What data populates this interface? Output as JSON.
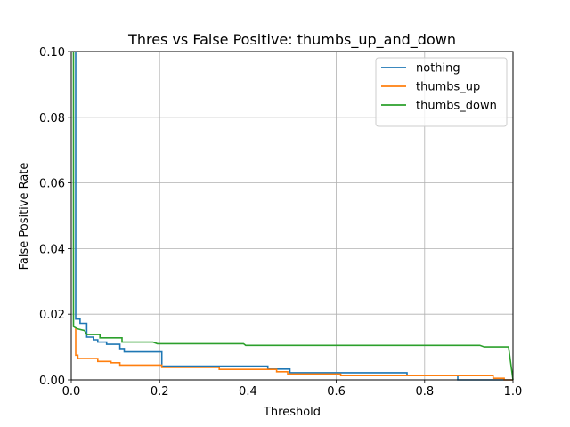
{
  "chart_data": {
    "type": "line",
    "title": "Thres vs False Positive: thumbs_up_and_down",
    "xlabel": "Threshold",
    "ylabel": "False Positive Rate",
    "xlim": [
      0.0,
      1.0
    ],
    "ylim": [
      0.0,
      0.1
    ],
    "xticks": [
      "0.0",
      "0.2",
      "0.4",
      "0.6",
      "0.8",
      "1.0"
    ],
    "yticks": [
      "0.00",
      "0.02",
      "0.04",
      "0.06",
      "0.08",
      "0.10"
    ],
    "grid": true,
    "legend_position": "top-right",
    "series": [
      {
        "name": "nothing",
        "color": "#1f77b4",
        "points": [
          [
            0.01,
            0.1
          ],
          [
            0.01,
            0.0185
          ],
          [
            0.02,
            0.0185
          ],
          [
            0.02,
            0.0172
          ],
          [
            0.035,
            0.0172
          ],
          [
            0.035,
            0.013
          ],
          [
            0.05,
            0.013
          ],
          [
            0.05,
            0.0122
          ],
          [
            0.06,
            0.0122
          ],
          [
            0.06,
            0.0115
          ],
          [
            0.08,
            0.0115
          ],
          [
            0.08,
            0.0108
          ],
          [
            0.11,
            0.0108
          ],
          [
            0.11,
            0.0095
          ],
          [
            0.12,
            0.0095
          ],
          [
            0.12,
            0.0085
          ],
          [
            0.205,
            0.0085
          ],
          [
            0.205,
            0.0042
          ],
          [
            0.445,
            0.0042
          ],
          [
            0.445,
            0.0033
          ],
          [
            0.495,
            0.0033
          ],
          [
            0.495,
            0.0022
          ],
          [
            0.76,
            0.0022
          ],
          [
            0.76,
            0.0013
          ],
          [
            0.875,
            0.0013
          ],
          [
            0.875,
            0.0
          ],
          [
            1.0,
            0.0
          ]
        ]
      },
      {
        "name": "thumbs_up",
        "color": "#ff7f0e",
        "points": [
          [
            0.01,
            0.016
          ],
          [
            0.01,
            0.0075
          ],
          [
            0.015,
            0.0075
          ],
          [
            0.015,
            0.0065
          ],
          [
            0.06,
            0.0065
          ],
          [
            0.06,
            0.0056
          ],
          [
            0.09,
            0.0056
          ],
          [
            0.09,
            0.0052
          ],
          [
            0.11,
            0.0052
          ],
          [
            0.11,
            0.0045
          ],
          [
            0.205,
            0.0045
          ],
          [
            0.205,
            0.0038
          ],
          [
            0.335,
            0.0038
          ],
          [
            0.335,
            0.0032
          ],
          [
            0.465,
            0.0032
          ],
          [
            0.465,
            0.0025
          ],
          [
            0.49,
            0.0025
          ],
          [
            0.49,
            0.0018
          ],
          [
            0.61,
            0.0018
          ],
          [
            0.61,
            0.0013
          ],
          [
            0.955,
            0.0013
          ],
          [
            0.955,
            0.0005
          ],
          [
            0.98,
            0.0005
          ],
          [
            0.98,
            0.0
          ],
          [
            1.0,
            0.0
          ]
        ]
      },
      {
        "name": "thumbs_down",
        "color": "#2ca02c",
        "points": [
          [
            0.005,
            0.1
          ],
          [
            0.005,
            0.0162
          ],
          [
            0.015,
            0.0155
          ],
          [
            0.03,
            0.015
          ],
          [
            0.035,
            0.0138
          ],
          [
            0.065,
            0.0138
          ],
          [
            0.065,
            0.0128
          ],
          [
            0.115,
            0.0128
          ],
          [
            0.115,
            0.0115
          ],
          [
            0.185,
            0.0115
          ],
          [
            0.195,
            0.011
          ],
          [
            0.39,
            0.011
          ],
          [
            0.395,
            0.0105
          ],
          [
            0.925,
            0.0105
          ],
          [
            0.935,
            0.01
          ],
          [
            0.99,
            0.01
          ],
          [
            1.0,
            0.0
          ]
        ]
      }
    ]
  }
}
